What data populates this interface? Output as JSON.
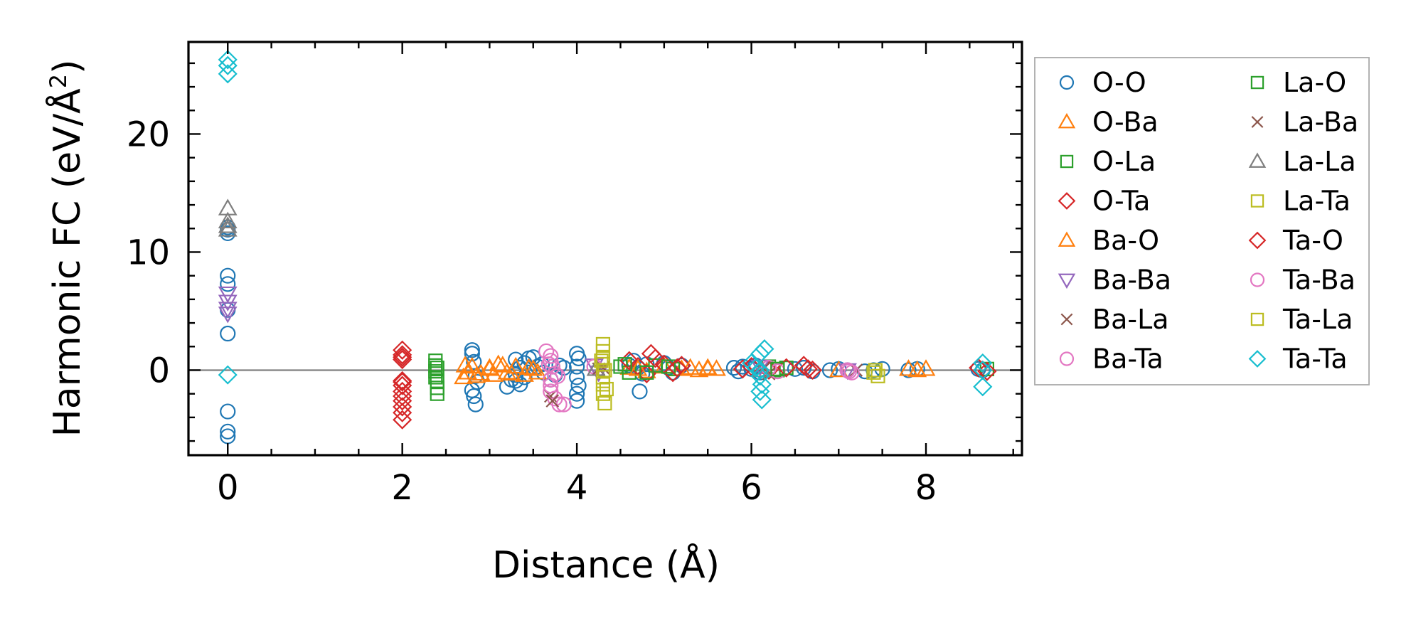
{
  "chart_data": {
    "type": "scatter",
    "title": "",
    "xlabel": "Distance (Å)",
    "ylabel_main": "Harmonic FC (eV/Å",
    "ylabel_sup": "2",
    "ylabel_close": ")",
    "xlim": [
      -0.45,
      9.1
    ],
    "ylim": [
      -7.2,
      27.8
    ],
    "xticks": [
      0,
      2,
      4,
      6,
      8
    ],
    "xtick_labels": [
      "0",
      "2",
      "4",
      "6",
      "8"
    ],
    "yticks": [
      0,
      10,
      20
    ],
    "ytick_labels": [
      "0",
      "10",
      "20"
    ],
    "x_minor_step": 0.5,
    "y_minor_step": 2,
    "zero_line": 0,
    "grid": false,
    "legend_position": "outside-right",
    "series": [
      {
        "name": "O-O",
        "marker": "circle",
        "color": "#1f77b4",
        "x": [
          0,
          0,
          0,
          0,
          0,
          0,
          0,
          0,
          0,
          0,
          2.8,
          2.8,
          2.82,
          2.84,
          2.86,
          2.8,
          2.82,
          2.84,
          3.2,
          3.25,
          3.3,
          3.35,
          3.4,
          3.45,
          3.5,
          3.55,
          3.3,
          3.35,
          3.4,
          3.3,
          3.6,
          3.62,
          3.7,
          3.72,
          3.75,
          3.8,
          3.85,
          4.0,
          4.02,
          4.0,
          4.0,
          4.02,
          4.0,
          4.0,
          4.6,
          4.65,
          4.7,
          4.75,
          4.8,
          4.72,
          5.0,
          5.05,
          5.1,
          5.2,
          5.8,
          5.85,
          5.9,
          6.0,
          6.05,
          6.1,
          6.5,
          6.6,
          6.7,
          6.9,
          7.0,
          7.1,
          7.3,
          7.4,
          7.5,
          7.8,
          7.9,
          8.6,
          8.65
        ],
        "y": [
          11.6,
          11.9,
          12.1,
          8.0,
          7.3,
          5.1,
          3.1,
          -3.5,
          -5.2,
          -5.6,
          1.7,
          1.4,
          0.7,
          -0.5,
          -1.0,
          -1.7,
          -2.2,
          -2.9,
          -1.4,
          -0.8,
          -0.4,
          0.2,
          0.6,
          1.0,
          1.1,
          0.3,
          -0.9,
          -1.2,
          -0.6,
          0.9,
          0.5,
          -0.2,
          -0.8,
          0.3,
          -0.4,
          0.4,
          0.2,
          1.4,
          1.0,
          0.3,
          -0.6,
          -1.3,
          -2.0,
          -2.6,
          0.4,
          0.8,
          0.2,
          -0.3,
          0.5,
          -1.8,
          0.6,
          0.2,
          -0.2,
          0.4,
          0.2,
          -0.1,
          0.3,
          0.1,
          0.4,
          -0.2,
          0.1,
          0.2,
          -0.1,
          0.0,
          0.1,
          0.0,
          -0.1,
          0.0,
          0.1,
          0.0,
          0.1,
          0.1,
          0.0
        ]
      },
      {
        "name": "O-Ba",
        "marker": "triangle-up",
        "color": "#ff7f0e",
        "x": [
          2.7,
          2.75,
          2.8,
          2.9,
          3.0,
          3.05,
          3.1,
          3.2,
          3.3,
          3.4,
          3.5,
          4.6,
          4.8,
          5.0,
          5.2,
          5.4,
          5.5,
          5.6,
          7.0,
          7.8,
          7.9,
          8.0
        ],
        "y": [
          -0.6,
          -0.2,
          0.3,
          -0.3,
          0.2,
          -0.4,
          0.5,
          -0.2,
          0.3,
          -0.4,
          0.1,
          0.2,
          -0.1,
          0.3,
          0.1,
          0.0,
          0.2,
          0.1,
          0.0,
          0.1,
          0.0,
          0.1
        ]
      },
      {
        "name": "O-La",
        "marker": "square",
        "color": "#2ca02c",
        "x": [
          2.38,
          2.38,
          2.38,
          2.38,
          2.4,
          2.4,
          2.4,
          4.5,
          4.6,
          4.9,
          5.1,
          6.2,
          6.3,
          6.4,
          8.7
        ],
        "y": [
          0.8,
          0.4,
          -0.1,
          -0.6,
          -1.0,
          -1.5,
          -2.0,
          0.3,
          -0.2,
          0.4,
          0.1,
          0.3,
          0.0,
          0.2,
          0.1
        ]
      },
      {
        "name": "O-Ta",
        "marker": "diamond",
        "color": "#d62728",
        "x": [
          2.0,
          2.0,
          2.0,
          2.0,
          2.0,
          2.0,
          2.0,
          2.0,
          2.0,
          2.0,
          2.0,
          4.6,
          4.7,
          4.8,
          4.9,
          5.0,
          5.1,
          5.2,
          5.9,
          6.0,
          6.2,
          6.4,
          6.6,
          6.7,
          8.6,
          8.7
        ],
        "y": [
          1.7,
          1.3,
          0.9,
          -0.9,
          -1.3,
          -1.8,
          -2.2,
          -2.6,
          -3.1,
          -3.6,
          -4.2,
          0.8,
          0.3,
          -0.3,
          1.0,
          0.5,
          -0.2,
          0.4,
          0.1,
          0.3,
          0.0,
          0.2,
          0.4,
          0.0,
          0.2,
          -0.1
        ]
      },
      {
        "name": "Ba-O",
        "marker": "triangle-up",
        "color": "#ff7f0e",
        "x": [
          2.72,
          2.85,
          3.0,
          3.15,
          3.25,
          3.45,
          3.55,
          4.7,
          5.3,
          5.5
        ],
        "y": [
          0.4,
          -0.5,
          0.1,
          0.4,
          -0.3,
          0.2,
          -0.2,
          0.1,
          0.2,
          0.1
        ]
      },
      {
        "name": "Ba-Ba",
        "marker": "triangle-down",
        "color": "#9467bd",
        "x": [
          0,
          0,
          0,
          0,
          4.2,
          4.25,
          6.1,
          7.1
        ],
        "y": [
          6.5,
          5.8,
          5.2,
          4.8,
          0.4,
          -0.2,
          0.3,
          0.0
        ]
      },
      {
        "name": "Ba-La",
        "marker": "cross",
        "color": "#8c564b",
        "x": [
          3.7,
          4.3,
          6.2,
          7.2
        ],
        "y": [
          -2.2,
          0.2,
          -0.3,
          0.0
        ]
      },
      {
        "name": "Ba-Ta",
        "marker": "circle",
        "color": "#e377c2",
        "x": [
          3.65,
          3.7,
          3.7,
          3.72,
          3.75,
          3.7,
          3.7,
          3.7,
          3.75,
          3.8,
          3.85,
          4.2,
          6.2,
          6.3,
          7.1,
          7.15
        ],
        "y": [
          1.6,
          1.2,
          0.8,
          0.3,
          -0.3,
          -0.8,
          -1.3,
          -1.8,
          -2.4,
          -2.9,
          -2.9,
          0.3,
          0.2,
          -0.1,
          0.0,
          -0.2
        ]
      },
      {
        "name": "La-O",
        "marker": "square",
        "color": "#2ca02c",
        "x": [
          2.4,
          4.55,
          4.8,
          5.05,
          6.3
        ],
        "y": [
          0.2,
          0.5,
          -0.2,
          0.3,
          0.1
        ]
      },
      {
        "name": "La-Ba",
        "marker": "cross",
        "color": "#8c564b",
        "x": [
          3.72,
          4.25,
          6.15
        ],
        "y": [
          -2.6,
          0.1,
          0.2
        ]
      },
      {
        "name": "La-La",
        "marker": "triangle-up",
        "color": "#7f7f7f",
        "x": [
          0,
          0,
          0,
          0,
          4.22,
          6.12
        ],
        "y": [
          13.7,
          12.6,
          12.2,
          11.9,
          0.1,
          0.0
        ]
      },
      {
        "name": "La-Ta",
        "marker": "square",
        "color": "#bcbd22",
        "x": [
          4.3,
          4.3,
          4.3,
          4.3,
          4.32,
          4.3,
          4.3,
          4.3,
          4.32,
          7.4,
          7.45
        ],
        "y": [
          2.2,
          1.6,
          1.0,
          0.5,
          0.0,
          -0.6,
          -1.2,
          -2.0,
          -2.8,
          -0.2,
          -0.5
        ]
      },
      {
        "name": "Ta-O",
        "marker": "diamond",
        "color": "#d62728",
        "x": [
          2.0,
          2.0,
          4.85,
          5.15,
          6.65,
          8.65
        ],
        "y": [
          1.1,
          -1.0,
          1.4,
          0.2,
          0.1,
          0.0
        ]
      },
      {
        "name": "Ta-Ba",
        "marker": "circle",
        "color": "#e377c2",
        "x": [
          3.68,
          3.78,
          7.12
        ],
        "y": [
          0.5,
          -0.5,
          -0.1
        ]
      },
      {
        "name": "Ta-La",
        "marker": "square",
        "color": "#bcbd22",
        "x": [
          4.28,
          4.34,
          7.42
        ],
        "y": [
          0.8,
          -1.6,
          0.0
        ]
      },
      {
        "name": "Ta-Ta",
        "marker": "diamond",
        "color": "#17becf",
        "x": [
          0,
          0,
          0,
          0,
          6.0,
          6.05,
          6.1,
          6.1,
          6.12,
          6.15,
          6.1,
          6.12,
          6.1,
          8.65,
          8.65,
          8.65
        ],
        "y": [
          26.3,
          25.8,
          25.1,
          -0.4,
          0.6,
          0.2,
          1.4,
          -0.5,
          -1.2,
          1.8,
          -1.8,
          -2.5,
          0.0,
          0.6,
          0.0,
          -1.4
        ]
      }
    ]
  }
}
